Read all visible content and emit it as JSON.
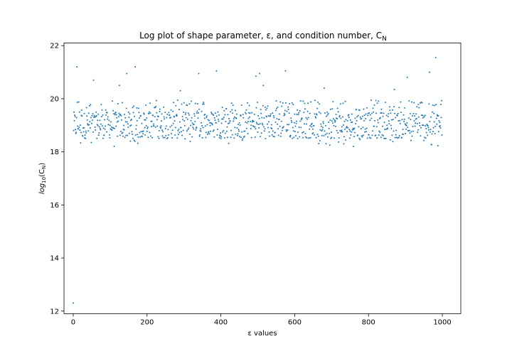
{
  "figure": {
    "title": "Log plot of shape parameter, ε, and condition number, C",
    "title_sub": "N",
    "xlabel": "ε values",
    "ylabel_main": "log",
    "ylabel_sub": "10",
    "ylabel_inner": "(C",
    "ylabel_inner_sub": "N",
    "ylabel_close": ")"
  },
  "chart_data": {
    "type": "scatter",
    "title": "Log plot of shape parameter, ε, and condition number, C_N",
    "xlabel": "ε values",
    "ylabel": "log10(C_N)",
    "xlim": [
      -25,
      1050
    ],
    "ylim": [
      11.9,
      22.1
    ],
    "xticks": [
      0,
      200,
      400,
      600,
      800,
      1000
    ],
    "yticks": [
      12,
      14,
      16,
      18,
      20,
      22
    ],
    "grid": false,
    "marker_color": "#1f77b4",
    "n_points": 1000,
    "baseline_range": [
      18.2,
      19.4
    ],
    "outliers": [
      {
        "x": 0,
        "y": 12.3
      },
      {
        "x": 10,
        "y": 21.2
      },
      {
        "x": 55,
        "y": 20.7
      },
      {
        "x": 125,
        "y": 20.5
      },
      {
        "x": 145,
        "y": 20.95
      },
      {
        "x": 168,
        "y": 21.2
      },
      {
        "x": 290,
        "y": 20.3
      },
      {
        "x": 340,
        "y": 20.95
      },
      {
        "x": 388,
        "y": 21.05
      },
      {
        "x": 495,
        "y": 20.85
      },
      {
        "x": 505,
        "y": 20.95
      },
      {
        "x": 515,
        "y": 20.5
      },
      {
        "x": 575,
        "y": 21.05
      },
      {
        "x": 680,
        "y": 20.4
      },
      {
        "x": 870,
        "y": 20.35
      },
      {
        "x": 905,
        "y": 20.8
      },
      {
        "x": 965,
        "y": 21.0
      },
      {
        "x": 982,
        "y": 21.55
      }
    ]
  }
}
